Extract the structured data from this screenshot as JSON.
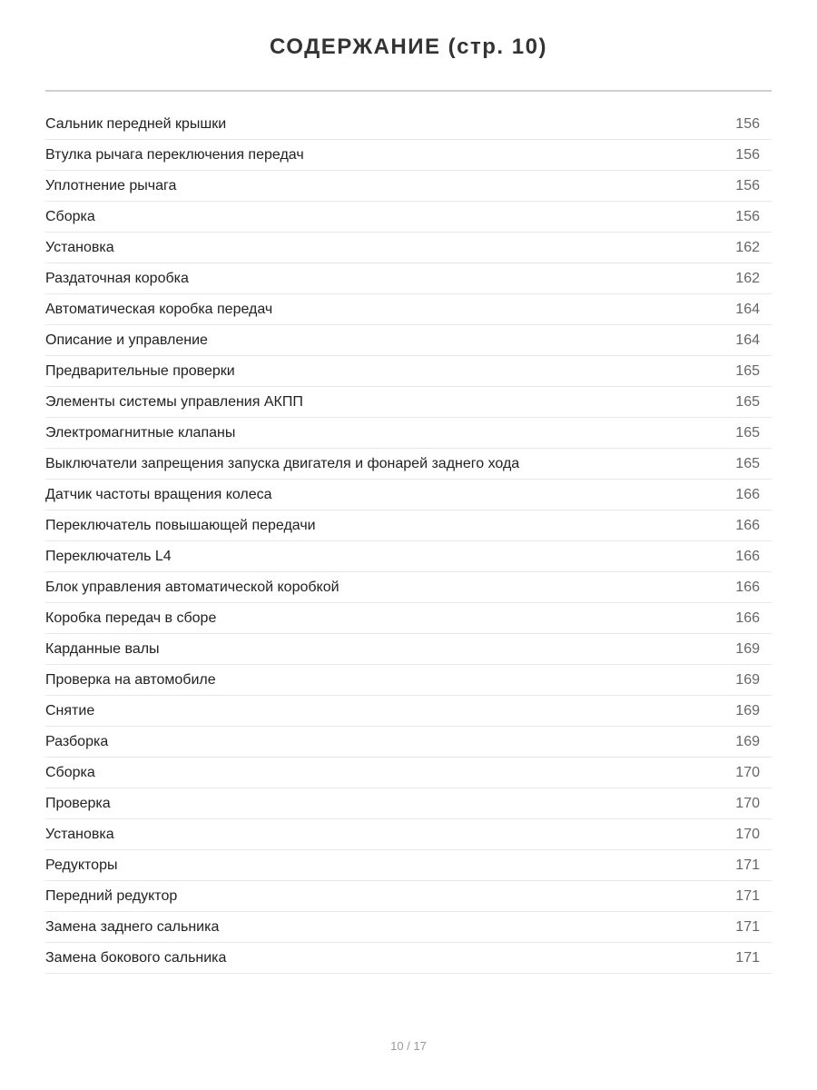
{
  "title": "СОДЕРЖАНИЕ (стр. 10)",
  "entries": [
    {
      "title": "Сальник передней крышки",
      "page": "156"
    },
    {
      "title": "Втулка рычага переключения передач",
      "page": "156"
    },
    {
      "title": "Уплотнение рычага",
      "page": "156"
    },
    {
      "title": "Сборка",
      "page": "156"
    },
    {
      "title": "Установка",
      "page": "162"
    },
    {
      "title": "Раздаточная коробка",
      "page": "162"
    },
    {
      "title": "Автоматическая коробка передач",
      "page": "164"
    },
    {
      "title": "Описание и управление",
      "page": "164"
    },
    {
      "title": "Предварительные проверки",
      "page": "165"
    },
    {
      "title": "Элементы системы управления АКПП",
      "page": "165"
    },
    {
      "title": "Электромагнитные клапаны",
      "page": "165"
    },
    {
      "title": "Выключатели запрещения запуска двигателя и фонарей заднего хода",
      "page": "165"
    },
    {
      "title": "Датчик частоты вращения колеса",
      "page": "166"
    },
    {
      "title": "Переключатель повышающей передачи",
      "page": "166"
    },
    {
      "title": "Переключатель L4",
      "page": "166"
    },
    {
      "title": "Блок управления автоматической коробкой",
      "page": "166"
    },
    {
      "title": "Коробка передач в сборе",
      "page": "166"
    },
    {
      "title": "Карданные валы",
      "page": "169"
    },
    {
      "title": "Проверка на автомобиле",
      "page": "169"
    },
    {
      "title": "Снятие",
      "page": "169"
    },
    {
      "title": "Разборка",
      "page": "169"
    },
    {
      "title": "Сборка",
      "page": "170"
    },
    {
      "title": "Проверка",
      "page": "170"
    },
    {
      "title": "Установка",
      "page": "170"
    },
    {
      "title": "Редукторы",
      "page": "171"
    },
    {
      "title": "Передний редуктор",
      "page": "171"
    },
    {
      "title": "Замена заднего сальника",
      "page": "171"
    },
    {
      "title": "Замена бокового сальника",
      "page": "171"
    }
  ],
  "footer": {
    "page_indicator": "10 / 17"
  }
}
